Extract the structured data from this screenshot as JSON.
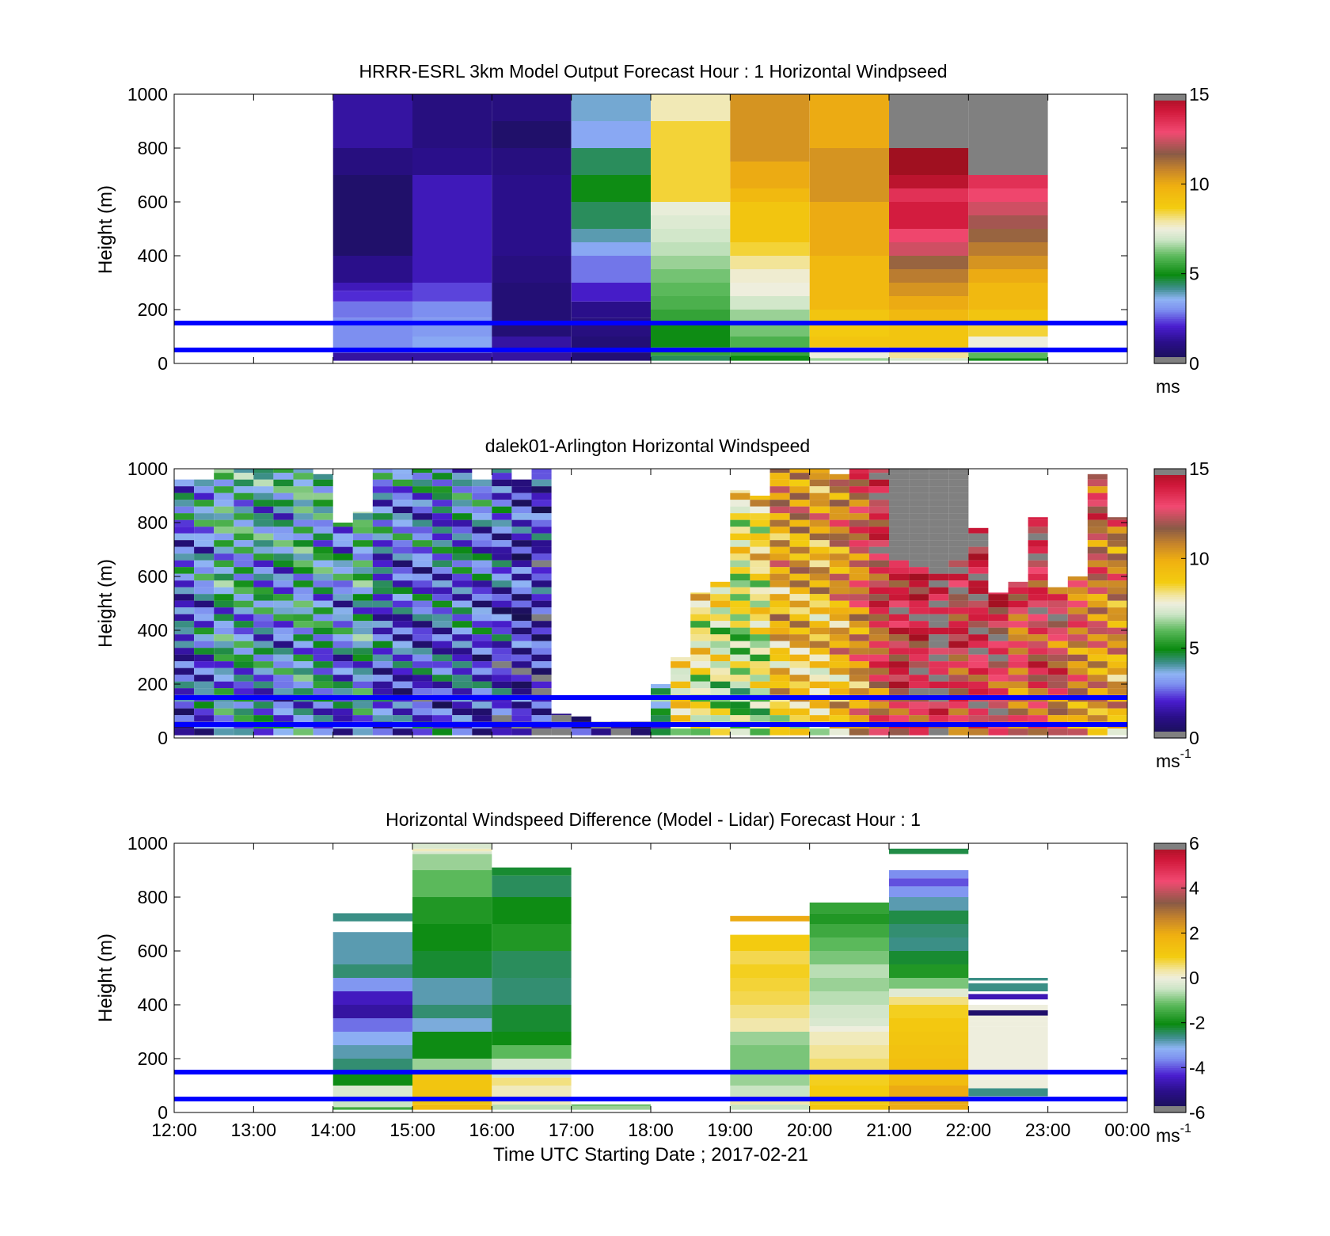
{
  "chart_data": [
    {
      "type": "heatmap",
      "title": "HRRR-ESRL 3km Model Output   Forecast Hour : 1 Horizontal Windpseed",
      "xlabel": "",
      "ylabel": "Height (m)",
      "xlim": [
        12,
        24
      ],
      "ylim": [
        0,
        1000
      ],
      "x_ticks": [
        12,
        13,
        14,
        15,
        16,
        17,
        18,
        19,
        20,
        21,
        22,
        23,
        24
      ],
      "y_ticks": [
        0,
        200,
        400,
        600,
        800,
        1000
      ],
      "y_tick_labels": [
        "0",
        "200",
        "400",
        "600",
        "800",
        "1000"
      ],
      "colorbar": {
        "range": [
          0,
          15
        ],
        "ticks": [
          "0",
          "5",
          "10",
          "15"
        ],
        "unit_text": "ms",
        "unit_sup": ""
      },
      "reference_lines_m": [
        50,
        150
      ],
      "column_width_h": 1,
      "columns": [
        {
          "t": 14,
          "tops": [
            40,
            100,
            170,
            230,
            270,
            300,
            400,
            700,
            800,
            1000
          ],
          "vals": [
            1.5,
            3.0,
            3.0,
            2.8,
            2.2,
            1.8,
            1.2,
            0.6,
            1.0,
            1.5
          ]
        },
        {
          "t": 15,
          "tops": [
            40,
            100,
            170,
            230,
            300,
            400,
            700,
            800,
            1000
          ],
          "vals": [
            1.5,
            3.4,
            3.2,
            3.0,
            2.4,
            1.8,
            1.8,
            1.2,
            1.0
          ]
        },
        {
          "t": 16,
          "tops": [
            40,
            100,
            300,
            400,
            700,
            800,
            900,
            1000
          ],
          "vals": [
            1.5,
            1.5,
            0.8,
            1.0,
            1.2,
            1.0,
            0.6,
            1.0
          ]
        },
        {
          "t": 17,
          "tops": [
            40,
            100,
            170,
            230,
            300,
            400,
            450,
            500,
            600,
            700,
            800,
            900,
            1000
          ],
          "vals": [
            0.8,
            0.8,
            1.0,
            1.2,
            2.0,
            2.8,
            3.4,
            4.0,
            4.5,
            5.0,
            4.5,
            3.4,
            3.8
          ]
        },
        {
          "t": 18,
          "tops": [
            30,
            60,
            150,
            200,
            250,
            300,
            350,
            400,
            450,
            500,
            550,
            600,
            900,
            1000
          ],
          "vals": [
            4.5,
            5.5,
            5.0,
            5.5,
            5.8,
            6.0,
            6.2,
            6.5,
            6.8,
            7.0,
            7.2,
            7.4,
            8.5,
            7.8
          ]
        },
        {
          "t": 19,
          "tops": [
            30,
            60,
            100,
            150,
            200,
            250,
            300,
            350,
            400,
            450,
            500,
            550,
            600,
            650,
            700,
            750,
            800,
            900,
            1000
          ],
          "vals": [
            5.0,
            5.5,
            5.8,
            6.2,
            6.5,
            7.0,
            7.5,
            7.6,
            8.0,
            8.5,
            9.0,
            9.0,
            9.0,
            9.5,
            10.0,
            10.0,
            10.5,
            10.5,
            10.5
          ]
        },
        {
          "t": 20,
          "tops": [
            20,
            40,
            60,
            100,
            150,
            200,
            300,
            400,
            600,
            700,
            800,
            900,
            1000
          ],
          "vals": [
            6.5,
            7.5,
            8.0,
            9.0,
            8.8,
            9.0,
            9.5,
            9.5,
            10.0,
            10.5,
            10.5,
            10.0,
            10.0
          ]
        },
        {
          "t": 21,
          "tops": [
            20,
            40,
            60,
            100,
            150,
            200,
            250,
            300,
            350,
            400,
            450,
            500,
            550,
            600,
            650,
            700,
            800,
            900,
            1000
          ],
          "vals": [
            7.0,
            8.0,
            8.5,
            9.0,
            9.0,
            9.5,
            10.0,
            10.5,
            11.0,
            11.5,
            12.5,
            13.0,
            14.0,
            14.0,
            13.5,
            14.5,
            15.0,
            15.5,
            15.5
          ]
        },
        {
          "t": 22,
          "tops": [
            20,
            40,
            60,
            100,
            150,
            200,
            250,
            300,
            350,
            400,
            450,
            500,
            550,
            600,
            650,
            700,
            800,
            900,
            1000
          ],
          "vals": [
            5.0,
            6.0,
            7.0,
            7.5,
            8.5,
            9.0,
            9.5,
            9.5,
            10.0,
            10.5,
            11.0,
            11.5,
            12.0,
            12.5,
            13.0,
            13.5,
            15.5,
            15.5,
            15.5
          ]
        }
      ]
    },
    {
      "type": "heatmap",
      "title": "dalek01-Arlington  Horizontal Windspeed",
      "xlabel": "",
      "ylabel": "Height (m)",
      "xlim": [
        12,
        24
      ],
      "ylim": [
        0,
        1000
      ],
      "x_ticks": [
        12,
        13,
        14,
        15,
        16,
        17,
        18,
        19,
        20,
        21,
        22,
        23,
        24
      ],
      "y_ticks": [
        0,
        200,
        400,
        600,
        800,
        1000
      ],
      "y_tick_labels": [
        "0",
        "200",
        "400",
        "600",
        "800",
        "1000"
      ],
      "colorbar": {
        "range": [
          0,
          15
        ],
        "ticks": [
          "0",
          "5",
          "10",
          "15"
        ],
        "unit_text": "ms",
        "unit_sup": "-1"
      },
      "reference_lines_m": [
        50,
        150
      ],
      "column_width_h": 0.25,
      "columns": [
        {
          "t": 12.0,
          "top": 960,
          "v": 3.0
        },
        {
          "t": 12.25,
          "top": 960,
          "v": 3.5
        },
        {
          "t": 12.5,
          "top": 1000,
          "v": 4.5
        },
        {
          "t": 12.75,
          "top": 1000,
          "v": 4.3
        },
        {
          "t": 13.0,
          "top": 1000,
          "v": 4.0
        },
        {
          "t": 13.25,
          "top": 1000,
          "v": 3.8
        },
        {
          "t": 13.5,
          "top": 1000,
          "v": 4.6
        },
        {
          "t": 13.75,
          "top": 980,
          "v": 4.2
        },
        {
          "t": 14.0,
          "top": 800,
          "v": 3.6
        },
        {
          "t": 14.25,
          "top": 840,
          "v": 4.6
        },
        {
          "t": 14.5,
          "top": 1000,
          "v": 3.2
        },
        {
          "t": 14.75,
          "top": 1000,
          "v": 3.0
        },
        {
          "t": 15.0,
          "top": 1000,
          "v": 3.0
        },
        {
          "t": 15.25,
          "top": 1000,
          "v": 3.2
        },
        {
          "t": 15.5,
          "top": 1000,
          "v": 3.4
        },
        {
          "t": 15.75,
          "top": 960,
          "v": 3.0
        },
        {
          "t": 16.0,
          "top": 1000,
          "v": 2.6
        },
        {
          "t": 16.25,
          "top": 960,
          "v": 2.0
        },
        {
          "t": 16.5,
          "top": 1000,
          "v": 2.0
        },
        {
          "t": 16.75,
          "top": 90,
          "v": 1.0
        },
        {
          "t": 17.0,
          "top": 80,
          "v": 1.2
        },
        {
          "t": 17.25,
          "top": 60,
          "v": 1.0
        },
        {
          "t": 17.5,
          "top": 60,
          "v": 1.2
        },
        {
          "t": 17.75,
          "top": 60,
          "v": 1.2
        },
        {
          "t": 18.0,
          "top": 200,
          "v": 5.0
        },
        {
          "t": 18.25,
          "top": 300,
          "v": 9.0
        },
        {
          "t": 18.5,
          "top": 540,
          "v": 8.0
        },
        {
          "t": 18.75,
          "top": 580,
          "v": 7.5
        },
        {
          "t": 19.0,
          "top": 920,
          "v": 7.0
        },
        {
          "t": 19.25,
          "top": 900,
          "v": 7.6
        },
        {
          "t": 19.5,
          "top": 1000,
          "v": 9.5
        },
        {
          "t": 19.75,
          "top": 1000,
          "v": 9.5
        },
        {
          "t": 20.0,
          "top": 1000,
          "v": 9.2
        },
        {
          "t": 20.25,
          "top": 980,
          "v": 10.0
        },
        {
          "t": 20.5,
          "top": 1000,
          "v": 11.0
        },
        {
          "t": 20.75,
          "top": 1000,
          "v": 12.5
        },
        {
          "t": 21.0,
          "top": 1000,
          "v": 13.5
        },
        {
          "t": 21.25,
          "top": 1000,
          "v": 14.0
        },
        {
          "t": 21.5,
          "top": 1000,
          "v": 15.0
        },
        {
          "t": 21.75,
          "top": 1000,
          "v": 13.0
        },
        {
          "t": 22.0,
          "top": 780,
          "v": 14.0
        },
        {
          "t": 22.25,
          "top": 540,
          "v": 13.5
        },
        {
          "t": 22.5,
          "top": 580,
          "v": 12.0
        },
        {
          "t": 22.75,
          "top": 820,
          "v": 13.0
        },
        {
          "t": 23.0,
          "top": 560,
          "v": 12.5
        },
        {
          "t": 23.25,
          "top": 600,
          "v": 11.5
        },
        {
          "t": 23.5,
          "top": 980,
          "v": 11.0
        },
        {
          "t": 23.75,
          "top": 820,
          "v": 10.5
        }
      ]
    },
    {
      "type": "heatmap",
      "title": "Horizontal Windspeed Difference (Model - Lidar) Forecast Hour : 1",
      "xlabel": "Time UTC  Starting Date ; 2017-02-21",
      "ylabel": "Height (m)",
      "xlim": [
        12,
        24
      ],
      "ylim": [
        0,
        1000
      ],
      "x_ticks": [
        12,
        13,
        14,
        15,
        16,
        17,
        18,
        19,
        20,
        21,
        22,
        23,
        24
      ],
      "x_tick_labels": [
        "12:00",
        "13:00",
        "14:00",
        "15:00",
        "16:00",
        "17:00",
        "18:00",
        "19:00",
        "20:00",
        "21:00",
        "22:00",
        "23:00",
        "00:00"
      ],
      "y_ticks": [
        0,
        200,
        400,
        600,
        800,
        1000
      ],
      "y_tick_labels": [
        "0",
        "200",
        "400",
        "600",
        "800",
        "1000"
      ],
      "colorbar": {
        "range": [
          -6,
          6
        ],
        "ticks": [
          "-6",
          "-4",
          "-2",
          "0",
          "2",
          "4",
          "6"
        ],
        "unit_text": "ms",
        "unit_sup": "-1"
      },
      "reference_lines_m": [
        50,
        150
      ],
      "column_width_h": 1,
      "columns": [
        {
          "t": 14,
          "tops": [
            20,
            60,
            100,
            150,
            200,
            250,
            300,
            350,
            400,
            450,
            500,
            550,
            670,
            710,
            740
          ],
          "vals": [
            -1.5,
            -0.5,
            -0.3,
            -2.0,
            -2.5,
            -2.8,
            -3.2,
            -3.8,
            -4.8,
            -4.5,
            -3.5,
            -2.5,
            -2.8,
            null,
            -2.6
          ]
        },
        {
          "t": 15,
          "tops": [
            30,
            150,
            200,
            300,
            350,
            400,
            500,
            600,
            700,
            800,
            900,
            960,
            970,
            980,
            1000
          ],
          "vals": [
            1.5,
            1.2,
            -0.8,
            -2.0,
            -3.0,
            -2.5,
            -2.8,
            -2.2,
            -2.0,
            -1.8,
            -1.2,
            -0.8,
            -0.3,
            0.2,
            -0.3
          ]
        },
        {
          "t": 16,
          "tops": [
            30,
            100,
            130,
            150,
            200,
            250,
            300,
            400,
            500,
            600,
            700,
            800,
            880,
            910
          ],
          "vals": [
            -0.6,
            0.2,
            0.5,
            -0.4,
            -0.4,
            -1.2,
            -2.0,
            -2.2,
            -2.5,
            -2.4,
            -1.8,
            -2.0,
            -2.4,
            -2.2
          ]
        },
        {
          "t": 17,
          "tops": [
            25,
            30
          ],
          "vals": [
            -0.8,
            -1.2
          ]
        },
        {
          "t": 19,
          "tops": [
            30,
            60,
            100,
            150,
            250,
            300,
            350,
            400,
            450,
            500,
            550,
            600,
            660,
            710,
            730
          ],
          "vals": [
            -0.5,
            0.3,
            -0.5,
            -0.8,
            -1.0,
            -0.8,
            0.3,
            0.5,
            0.7,
            0.8,
            0.9,
            0.7,
            1.0,
            null,
            2.0
          ]
        },
        {
          "t": 20,
          "tops": [
            30,
            100,
            150,
            200,
            250,
            300,
            320,
            350,
            400,
            450,
            500,
            550,
            600,
            650,
            700,
            740,
            780
          ],
          "vals": [
            1.2,
            1.0,
            0.9,
            0.6,
            0.4,
            0.2,
            0.0,
            -0.3,
            -0.4,
            -0.6,
            -0.8,
            -0.6,
            -1.0,
            -1.2,
            -1.5,
            -1.8,
            -1.6
          ]
        },
        {
          "t": 21,
          "tops": [
            30,
            100,
            150,
            200,
            250,
            300,
            350,
            400,
            430,
            460,
            500,
            550,
            600,
            650,
            700,
            750,
            800,
            840,
            870,
            900,
            960,
            980
          ],
          "vals": [
            2.0,
            2.0,
            1.5,
            1.4,
            1.3,
            1.2,
            1.1,
            0.9,
            0.5,
            -0.2,
            -1.0,
            -1.8,
            -2.2,
            -2.6,
            -2.5,
            -2.3,
            -2.8,
            -3.5,
            -4.0,
            -3.6,
            null,
            -2.3
          ]
        },
        {
          "t": 22,
          "tops": [
            60,
            90,
            320,
            340,
            360,
            380,
            400,
            420,
            440,
            450,
            480,
            490,
            500
          ],
          "vals": [
            null,
            -2.6,
            0.0,
            0.0,
            0.0,
            -5.5,
            0.0,
            null,
            -4.6,
            null,
            -2.6,
            null,
            -2.6
          ]
        }
      ]
    }
  ]
}
